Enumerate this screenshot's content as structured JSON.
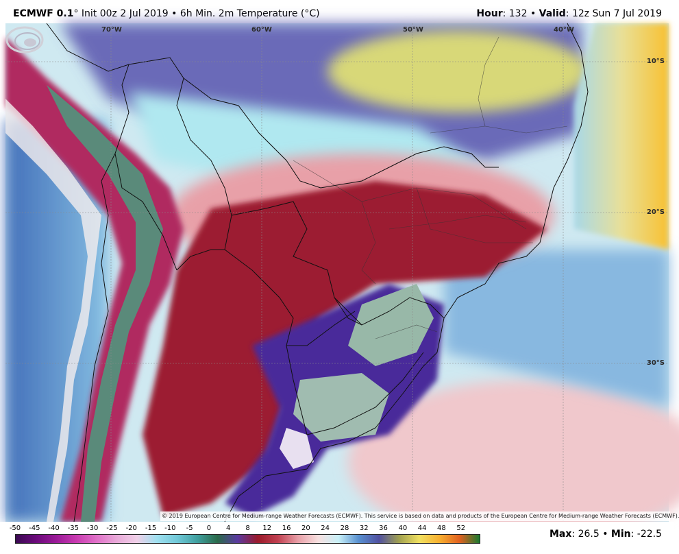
{
  "header": {
    "model": "ECMWF 0.1",
    "degree": "°",
    "init_text": " Init 00z 2 Jul 2019 • 6h Min. 2m Temperature (°C)",
    "hour_label": "Hour",
    "hour_value": ": 132 • ",
    "valid_label": "Valid",
    "valid_value": ": 12z Sun 7 Jul 2019"
  },
  "map": {
    "longitude_labels": [
      "70°W",
      "60°W",
      "50°W",
      "40°W"
    ],
    "latitude_labels": [
      "10°S",
      "20°S",
      "30°S"
    ],
    "copyright": "© 2019 European Centre for Medium-range Weather Forecasts (ECMWF). This service is based on data and products of the European Centre for Medium-range Weather Forecasts (ECMWF).",
    "logo_icon": "weatherbell-logo-icon",
    "colors": {
      "warm_coast": "#f0c040",
      "cold_purple": "#4a2a8a",
      "deep_red": "#9c1e30",
      "pink": "#e8a6b0",
      "cyan": "#a8e0ea",
      "ocean_blue": "#4a8cc8",
      "frost_green": "#98b8a8"
    }
  },
  "scale": {
    "ticks": [
      "-50",
      "-45",
      "-40",
      "-35",
      "-30",
      "-25",
      "-20",
      "-15",
      "-10",
      "-5",
      "0",
      "4",
      "8",
      "12",
      "16",
      "20",
      "24",
      "28",
      "32",
      "36",
      "40",
      "44",
      "48",
      "52"
    ],
    "colors": [
      "#3a0a52",
      "#6a0a7a",
      "#9a1a98",
      "#c83ab0",
      "#e070c8",
      "#e8a8d8",
      "#f0d0e8",
      "#a0e0f0",
      "#70c8d8",
      "#40a0a0",
      "#2a6a4a",
      "#5a3aa0",
      "#9a1a2a",
      "#c04050",
      "#e8a0a8",
      "#f8e0e0",
      "#c8f0f8",
      "#5890d0",
      "#5050a0",
      "#a0a050",
      "#f0e060",
      "#f8b030",
      "#e06020",
      "#1a7a30"
    ],
    "max_label": "Max",
    "max_value": ": 26.5 • ",
    "min_label": "Min",
    "min_value": ": -22.5"
  }
}
